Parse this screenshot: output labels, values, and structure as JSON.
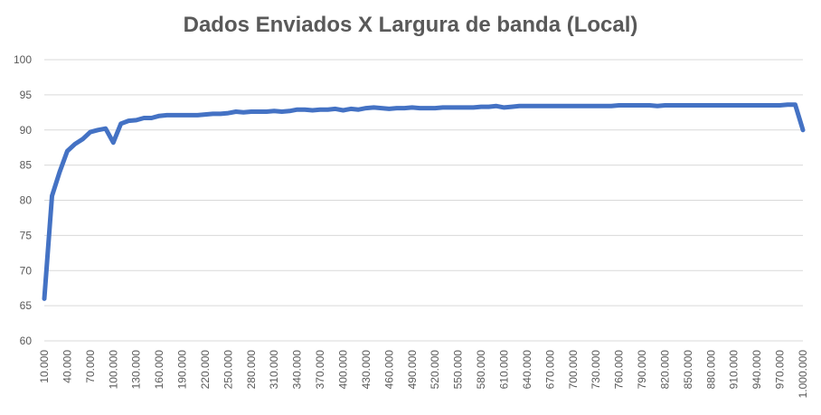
{
  "chart_data": {
    "type": "line",
    "title": "Dados Enviados X Largura de banda (Local)",
    "xlabel": "",
    "ylabel": "",
    "ylim": [
      60,
      100
    ],
    "yticks": [
      60,
      65,
      70,
      75,
      80,
      85,
      90,
      95,
      100
    ],
    "grid": true,
    "legend": "none",
    "line_color": "#4472C4",
    "grid_color": "#D9D9D9",
    "text_color": "#595959",
    "tick_labels": [
      "10.000",
      "40.000",
      "70.000",
      "100.000",
      "130.000",
      "160.000",
      "190.000",
      "220.000",
      "250.000",
      "280.000",
      "310.000",
      "340.000",
      "370.000",
      "400.000",
      "430.000",
      "460.000",
      "490.000",
      "520.000",
      "550.000",
      "580.000",
      "610.000",
      "640.000",
      "670.000",
      "700.000",
      "730.000",
      "760.000",
      "790.000",
      "820.000",
      "850.000",
      "880.000",
      "910.000",
      "940.000",
      "970.000",
      "1.000.000"
    ],
    "x": [
      10000,
      20000,
      30000,
      40000,
      50000,
      60000,
      70000,
      80000,
      90000,
      100000,
      110000,
      120000,
      130000,
      140000,
      150000,
      160000,
      170000,
      180000,
      190000,
      200000,
      210000,
      220000,
      230000,
      240000,
      250000,
      260000,
      270000,
      280000,
      290000,
      300000,
      310000,
      320000,
      330000,
      340000,
      350000,
      360000,
      370000,
      380000,
      390000,
      400000,
      410000,
      420000,
      430000,
      440000,
      450000,
      460000,
      470000,
      480000,
      490000,
      500000,
      510000,
      520000,
      530000,
      540000,
      550000,
      560000,
      570000,
      580000,
      590000,
      600000,
      610000,
      620000,
      630000,
      640000,
      650000,
      660000,
      670000,
      680000,
      690000,
      700000,
      710000,
      720000,
      730000,
      740000,
      750000,
      760000,
      770000,
      780000,
      790000,
      800000,
      810000,
      820000,
      830000,
      840000,
      850000,
      860000,
      870000,
      880000,
      890000,
      900000,
      910000,
      920000,
      930000,
      940000,
      950000,
      960000,
      970000,
      980000,
      990000,
      1000000
    ],
    "values": [
      66.0,
      80.6,
      84.0,
      87.0,
      88.0,
      88.7,
      89.7,
      90.0,
      90.2,
      88.2,
      90.9,
      91.3,
      91.4,
      91.7,
      91.7,
      92.0,
      92.1,
      92.1,
      92.1,
      92.1,
      92.1,
      92.2,
      92.3,
      92.3,
      92.4,
      92.6,
      92.5,
      92.6,
      92.6,
      92.6,
      92.7,
      92.6,
      92.7,
      92.9,
      92.9,
      92.8,
      92.9,
      92.9,
      93.0,
      92.8,
      93.0,
      92.9,
      93.1,
      93.2,
      93.1,
      93.0,
      93.1,
      93.1,
      93.2,
      93.1,
      93.1,
      93.1,
      93.2,
      93.2,
      93.2,
      93.2,
      93.2,
      93.3,
      93.3,
      93.4,
      93.2,
      93.3,
      93.4,
      93.4,
      93.4,
      93.4,
      93.4,
      93.4,
      93.4,
      93.4,
      93.4,
      93.4,
      93.4,
      93.4,
      93.4,
      93.5,
      93.5,
      93.5,
      93.5,
      93.5,
      93.4,
      93.5,
      93.5,
      93.5,
      93.5,
      93.5,
      93.5,
      93.5,
      93.5,
      93.5,
      93.5,
      93.5,
      93.5,
      93.5,
      93.5,
      93.5,
      93.5,
      93.6,
      93.6,
      90.0
    ]
  }
}
